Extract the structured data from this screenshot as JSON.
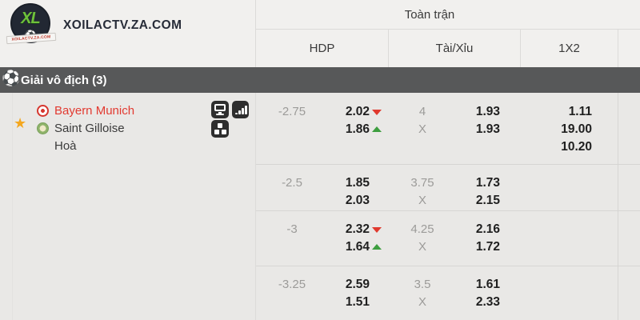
{
  "brand": {
    "logo_monogram": "XL",
    "logo_ribbon_text": "XOILACTV.ZA.COM",
    "site_name": "XOILACTV.ZA.COM"
  },
  "header": {
    "period_label": "Toàn trận",
    "columns": [
      "HDP",
      "Tài/Xỉu",
      "1X2"
    ]
  },
  "league_bar": {
    "icon": "soccer-ball-icon",
    "label": "Giải vô địch (3)"
  },
  "match": {
    "home_team": "Bayern Munich",
    "away_team": "Saint Gilloise",
    "draw_label": "Hoà",
    "favorite_icon": "star-icon",
    "action_icons": [
      "tv-icon",
      "stats-icon",
      "blocks-icon"
    ]
  },
  "odds_rows": [
    {
      "hdp": {
        "line": "-2.75",
        "home": "2.02",
        "home_trend": "down",
        "away": "1.86",
        "away_trend": "up"
      },
      "ou": {
        "over_line": "4",
        "over": "1.93",
        "under_line": "X",
        "under": "1.93"
      },
      "x12": [
        "1.11",
        "19.00",
        "10.20"
      ]
    },
    {
      "hdp": {
        "line": "-2.5",
        "home": "1.85",
        "home_trend": "",
        "away": "2.03",
        "away_trend": ""
      },
      "ou": {
        "over_line": "3.75",
        "over": "1.73",
        "under_line": "X",
        "under": "2.15"
      },
      "x12": []
    },
    {
      "hdp": {
        "line": "-3",
        "home": "2.32",
        "home_trend": "down",
        "away": "1.64",
        "away_trend": "up"
      },
      "ou": {
        "over_line": "4.25",
        "over": "2.16",
        "under_line": "X",
        "under": "1.72"
      },
      "x12": []
    },
    {
      "hdp": {
        "line": "-3.25",
        "home": "2.59",
        "home_trend": "",
        "away": "1.51",
        "away_trend": ""
      },
      "ou": {
        "over_line": "3.5",
        "over": "1.61",
        "under_line": "X",
        "under": "2.33"
      },
      "x12": []
    }
  ],
  "colors": {
    "home_team_text": "#e23a31",
    "trend_down": "#e0392e",
    "trend_up": "#3d9e3f",
    "favorite_star": "#f4a71f",
    "league_bar_bg": "#575859",
    "logo_green": "#6fc13a",
    "muted_text": "#9c9b99"
  }
}
